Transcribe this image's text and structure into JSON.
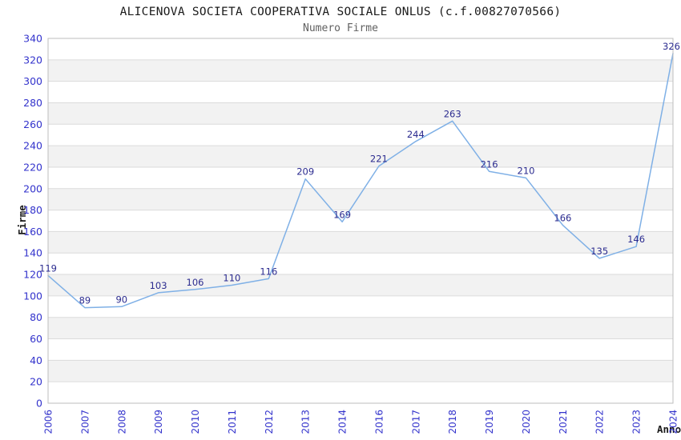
{
  "chart_data": {
    "type": "line",
    "title": "ALICENOVA SOCIETA COOPERATIVA SOCIALE ONLUS (c.f.00827070566)",
    "subtitle": "Numero Firme",
    "xlabel": "Anno",
    "ylabel": "Firme",
    "categories": [
      "2006",
      "2007",
      "2008",
      "2009",
      "2010",
      "2011",
      "2012",
      "2013",
      "2014",
      "2016",
      "2017",
      "2018",
      "2019",
      "2020",
      "2021",
      "2022",
      "2023",
      "2024"
    ],
    "values": [
      119,
      89,
      90,
      103,
      106,
      110,
      116,
      209,
      169,
      221,
      244,
      263,
      216,
      210,
      166,
      135,
      146,
      326
    ],
    "ylim": [
      0,
      340
    ],
    "ytick_step": 20,
    "grid": "horizontal-only",
    "background_bands": "alternating",
    "legend": "none",
    "point_labels_visible": true,
    "colors": {
      "line": "#7fb0e6",
      "tick_label": "#3333cc",
      "point_label": "#2b2b8f",
      "band": "#f2f2f2",
      "gridline": "#dbdbdb",
      "frame": "#bdbdbd",
      "title": "#1a1a1a",
      "subtitle": "#616161",
      "axis_label": "#1a1a1a"
    }
  }
}
